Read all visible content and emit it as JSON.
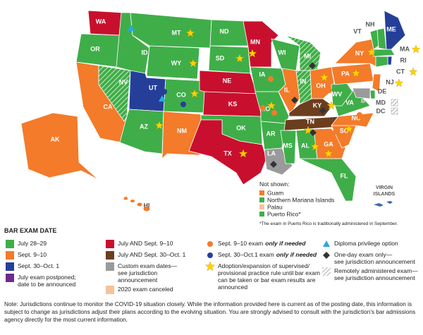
{
  "map": {
    "states": [
      "WA",
      "OR",
      "CA",
      "NV",
      "ID",
      "MT",
      "WY",
      "UT",
      "CO",
      "AZ",
      "NM",
      "ND",
      "SD",
      "NE",
      "KS",
      "OK",
      "TX",
      "MN",
      "IA",
      "MO",
      "AR",
      "LA",
      "WI",
      "IL",
      "IN",
      "MI",
      "OH",
      "KY",
      "TN",
      "MS",
      "AL",
      "GA",
      "FL",
      "SC",
      "NC",
      "VA",
      "WV",
      "PA",
      "NY",
      "VT",
      "NH",
      "ME",
      "MA",
      "RI",
      "CT",
      "NJ",
      "DE",
      "MD",
      "DC",
      "AK",
      "HI"
    ],
    "virgin_islands": [
      "VIRGIN",
      "ISLANDS"
    ]
  },
  "not_shown": {
    "title": "Not shown:",
    "items": [
      "Guam",
      "Northern Mariana Islands",
      "Palau",
      "Puerto Rico*"
    ],
    "footnote": "*The exam in Puerto Rico is traditionally administered in September."
  },
  "legend": {
    "title": "BAR EXAM DATE",
    "items": [
      {
        "lines": [
          "July 28–29"
        ]
      },
      {
        "lines": [
          "Sept. 9–10"
        ]
      },
      {
        "lines": [
          "Sept. 30–Oct. 1"
        ]
      },
      {
        "lines": [
          "July exam postponed;",
          "date to be announced"
        ]
      },
      {
        "lines": [
          "July AND Sept. 9–10"
        ]
      },
      {
        "lines": [
          "July AND Sept. 30–Oct. 1"
        ]
      },
      {
        "lines": [
          "Custom exam dates—",
          "see jurisdiction",
          "announcement"
        ]
      },
      {
        "lines": [
          "2020 exam canceled"
        ]
      },
      {
        "lines": [
          "Sept. 9–10 exam"
        ],
        "emphasis": "only if needed"
      },
      {
        "lines": [
          "Sept. 30–Oct.1 exam"
        ],
        "emphasis": "only if needed"
      },
      {
        "lines": [
          "Adoption/expansion of supervised/",
          "provisional practice rule until bar exam",
          "can be taken or bar exam results are",
          "announced"
        ]
      },
      {
        "lines": [
          "Diploma privilege option"
        ]
      },
      {
        "lines": [
          "One-day exam only—",
          "see jurisdiction announcement"
        ]
      },
      {
        "lines": [
          "Remotely administered exam—",
          "see jurisdiction announcement"
        ]
      }
    ]
  },
  "note": "Note: Jurisdictions continue to monitor the COVID-19 situation closely. While the information provided here is current as of the posting date, this information is subject to change as jurisdictions adjust their plans according to the evolving situation. You are strongly advised to consult with the jurisdiction's bar admissions agency directly for the most current information."
}
